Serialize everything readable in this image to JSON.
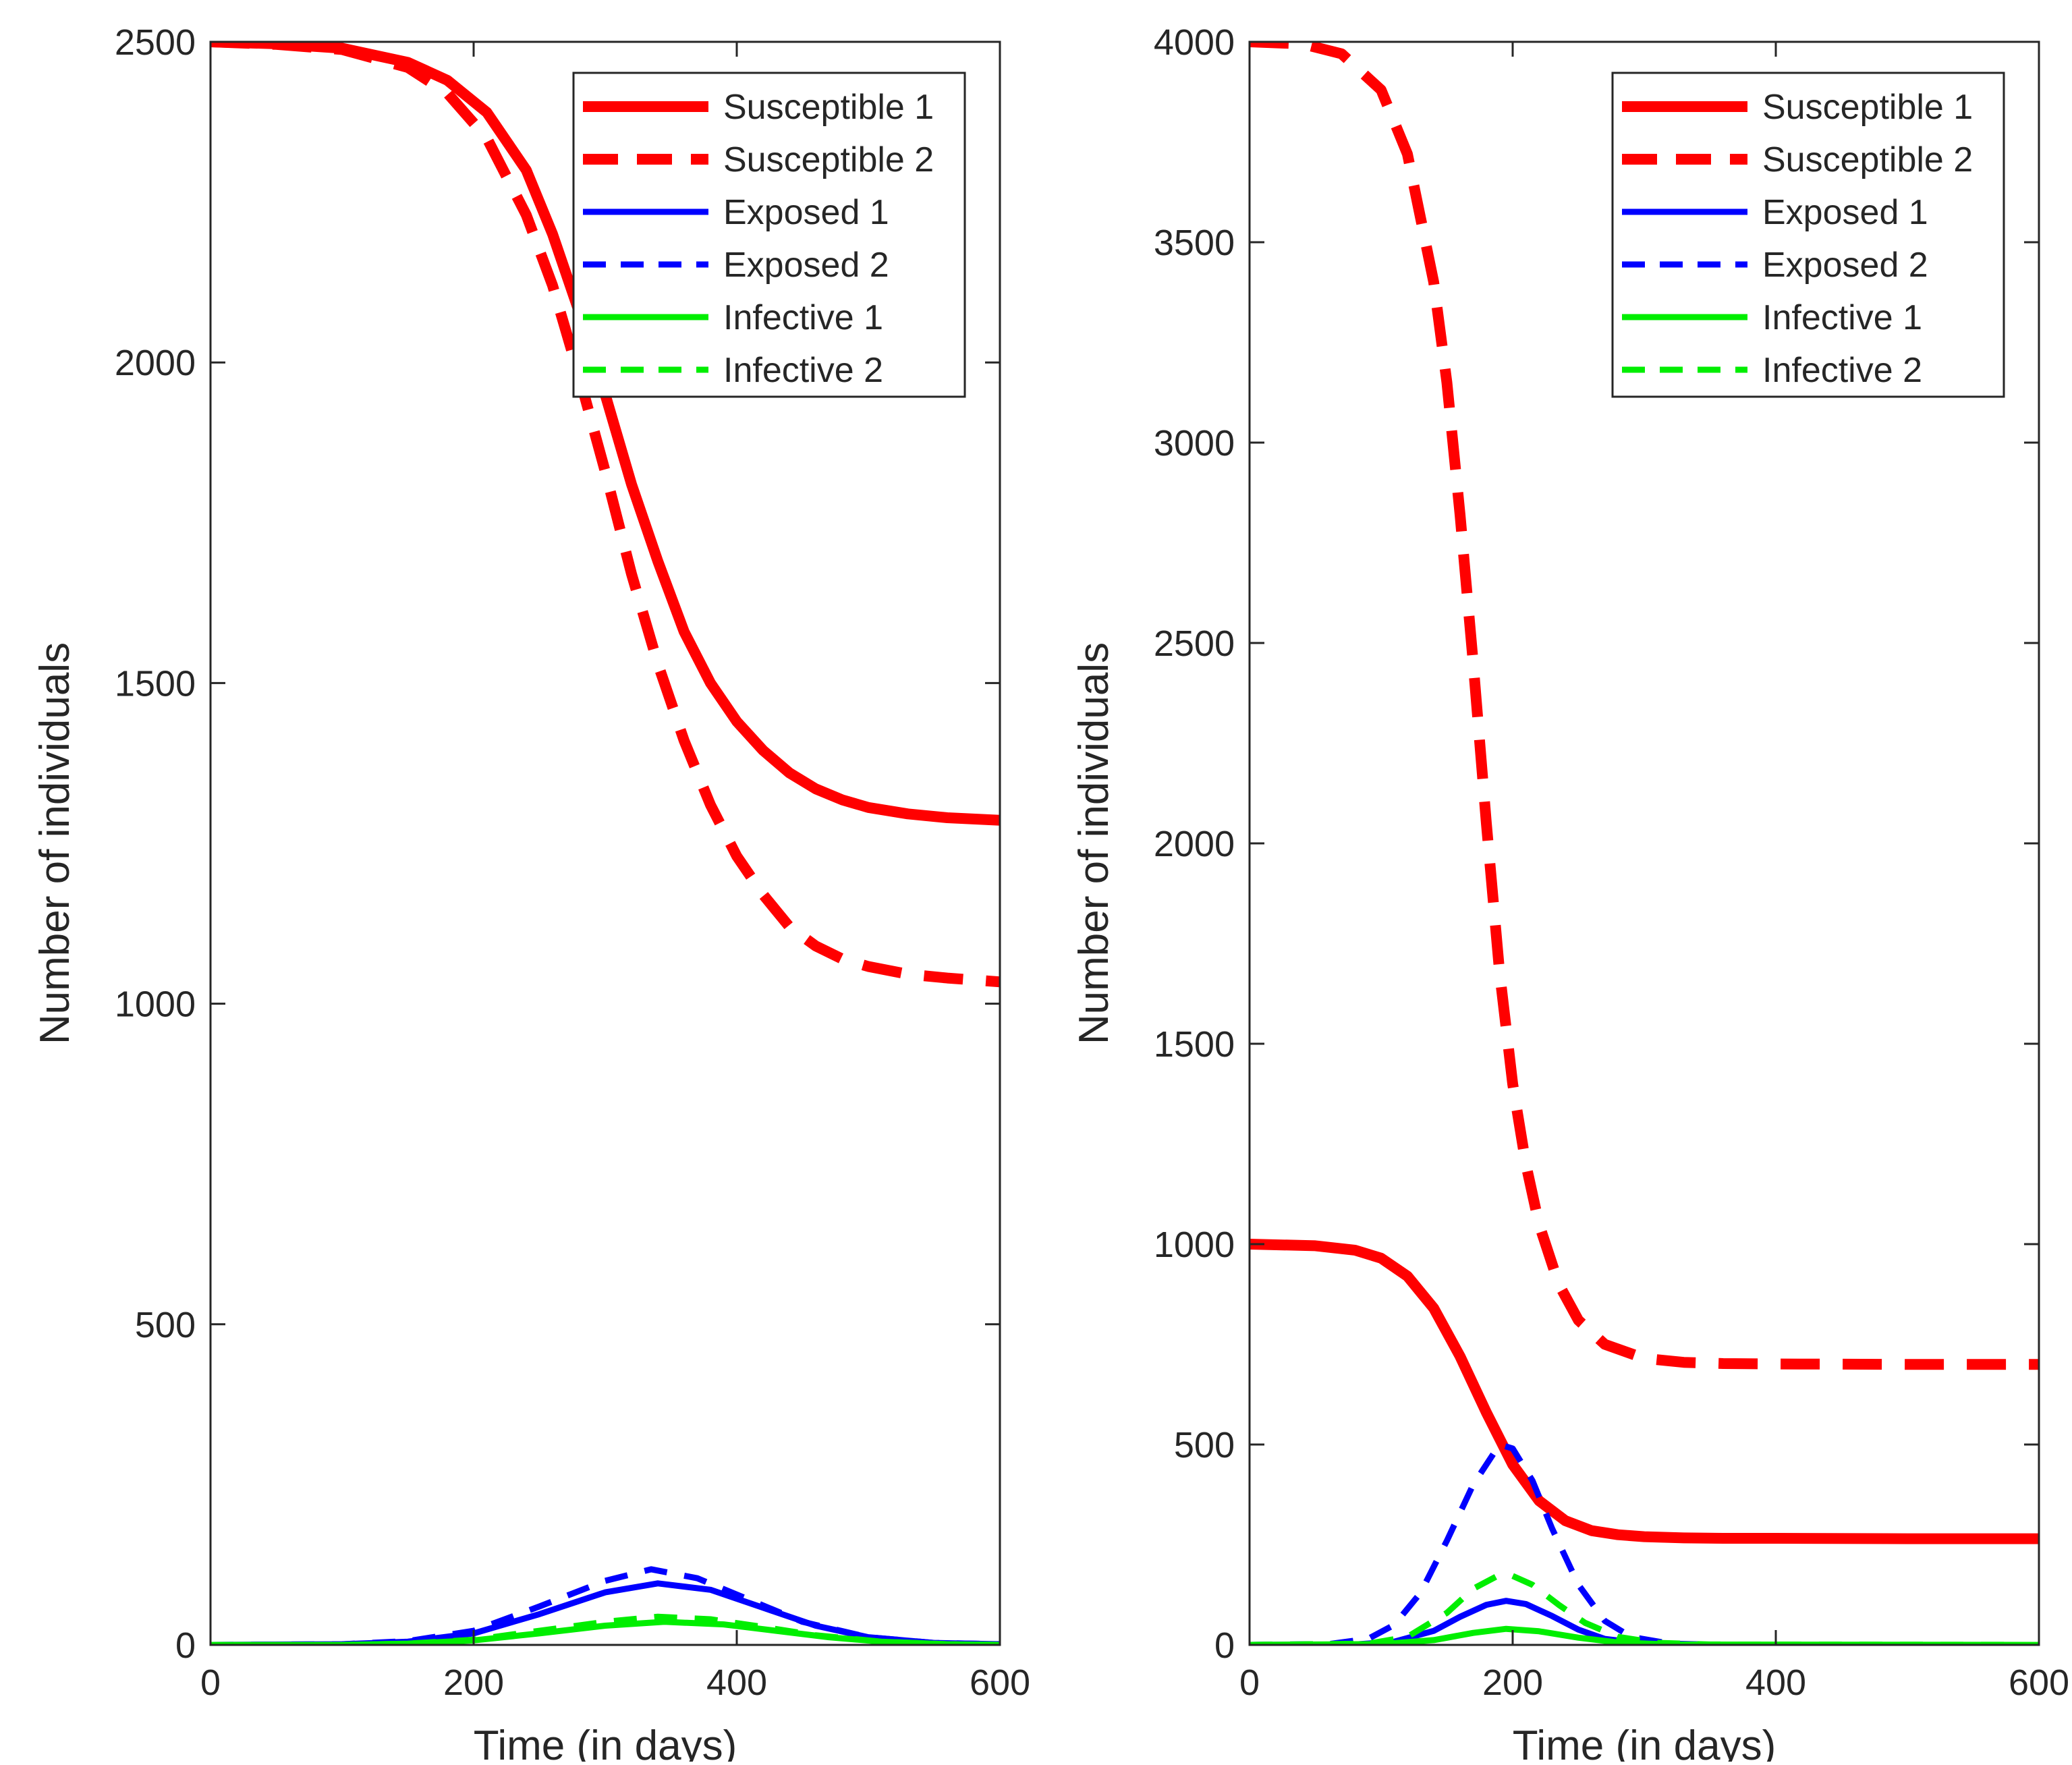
{
  "chart_data": [
    {
      "type": "line",
      "panel": "left",
      "xlabel": "Time (in days)",
      "ylabel": "Number of individuals",
      "xlim": [
        0,
        600
      ],
      "ylim": [
        0,
        2500
      ],
      "xticks": [
        0,
        200,
        400,
        600
      ],
      "yticks": [
        0,
        500,
        1000,
        1500,
        2000,
        2500
      ],
      "grid": false,
      "legend_position": "top-right",
      "series": [
        {
          "name": "Susceptible 1",
          "color": "#ff0000",
          "style": "solid",
          "width": "thick",
          "x": [
            0,
            50,
            100,
            150,
            180,
            210,
            240,
            260,
            280,
            300,
            320,
            340,
            360,
            380,
            400,
            420,
            440,
            460,
            480,
            500,
            530,
            560,
            600
          ],
          "y": [
            2500,
            2497,
            2490,
            2468,
            2440,
            2390,
            2300,
            2200,
            2080,
            1950,
            1810,
            1690,
            1580,
            1500,
            1440,
            1395,
            1360,
            1335,
            1318,
            1306,
            1296,
            1290,
            1286
          ]
        },
        {
          "name": "Susceptible 2",
          "color": "#ff0000",
          "style": "dashed",
          "width": "thick",
          "x": [
            0,
            50,
            100,
            150,
            180,
            210,
            240,
            260,
            280,
            300,
            320,
            340,
            360,
            380,
            400,
            420,
            440,
            460,
            480,
            500,
            530,
            560,
            600
          ],
          "y": [
            2500,
            2496,
            2488,
            2460,
            2420,
            2350,
            2230,
            2120,
            1980,
            1830,
            1670,
            1530,
            1410,
            1310,
            1230,
            1170,
            1120,
            1090,
            1070,
            1058,
            1046,
            1040,
            1034
          ]
        },
        {
          "name": "Exposed 1",
          "color": "#0000ff",
          "style": "solid",
          "width": "medium",
          "x": [
            0,
            100,
            150,
            200,
            250,
            300,
            340,
            380,
            420,
            460,
            500,
            550,
            600
          ],
          "y": [
            0,
            1,
            5,
            18,
            48,
            82,
            96,
            86,
            58,
            30,
            12,
            3,
            1
          ]
        },
        {
          "name": "Exposed 2",
          "color": "#0000ff",
          "style": "dashed",
          "width": "medium",
          "x": [
            0,
            100,
            150,
            200,
            250,
            300,
            335,
            370,
            410,
            450,
            500,
            550,
            600
          ],
          "y": [
            0,
            1,
            6,
            22,
            60,
            100,
            118,
            104,
            70,
            36,
            12,
            3,
            1
          ]
        },
        {
          "name": "Infective 1",
          "color": "#00ee00",
          "style": "solid",
          "width": "medium",
          "x": [
            0,
            100,
            150,
            200,
            250,
            300,
            345,
            390,
            430,
            470,
            510,
            560,
            600
          ],
          "y": [
            0,
            0,
            2,
            7,
            18,
            30,
            36,
            32,
            22,
            12,
            5,
            1,
            0
          ]
        },
        {
          "name": "Infective 2",
          "color": "#00ee00",
          "style": "dashed",
          "width": "medium",
          "x": [
            0,
            100,
            150,
            200,
            250,
            300,
            340,
            380,
            420,
            460,
            510,
            560,
            600
          ],
          "y": [
            0,
            0,
            2,
            8,
            22,
            36,
            44,
            40,
            28,
            15,
            5,
            1,
            0
          ]
        }
      ],
      "legend": [
        "Susceptible 1",
        "Susceptible 2",
        "Exposed 1",
        "Exposed 2",
        "Infective 1",
        "Infective 2"
      ]
    },
    {
      "type": "line",
      "panel": "right",
      "xlabel": "Time (in days)",
      "ylabel": "Number of individuals",
      "xlim": [
        0,
        600
      ],
      "ylim": [
        0,
        4000
      ],
      "xticks": [
        0,
        200,
        400,
        600
      ],
      "yticks": [
        0,
        500,
        1000,
        1500,
        2000,
        2500,
        3000,
        3500,
        4000
      ],
      "grid": false,
      "legend_position": "top-right",
      "series": [
        {
          "name": "Susceptible 1",
          "color": "#ff0000",
          "style": "solid",
          "width": "thick",
          "x": [
            0,
            50,
            80,
            100,
            120,
            140,
            160,
            180,
            200,
            220,
            240,
            260,
            280,
            300,
            330,
            360,
            400,
            500,
            600
          ],
          "y": [
            1000,
            996,
            985,
            965,
            920,
            840,
            720,
            580,
            450,
            360,
            310,
            285,
            275,
            270,
            267,
            266,
            266,
            265,
            265
          ]
        },
        {
          "name": "Susceptible 2",
          "color": "#ff0000",
          "style": "dashed",
          "width": "thick",
          "x": [
            0,
            40,
            70,
            100,
            120,
            140,
            150,
            160,
            170,
            180,
            190,
            200,
            210,
            220,
            235,
            250,
            270,
            300,
            330,
            360,
            400,
            500,
            600
          ],
          "y": [
            4000,
            3995,
            3970,
            3880,
            3720,
            3400,
            3150,
            2820,
            2450,
            2050,
            1680,
            1400,
            1200,
            1050,
            900,
            810,
            750,
            715,
            705,
            702,
            701,
            700,
            700
          ]
        },
        {
          "name": "Exposed 1",
          "color": "#0000ff",
          "style": "solid",
          "width": "medium",
          "x": [
            0,
            80,
            110,
            140,
            160,
            180,
            195,
            210,
            230,
            250,
            270,
            300,
            350,
            400,
            600
          ],
          "y": [
            0,
            1,
            8,
            35,
            70,
            100,
            110,
            102,
            72,
            38,
            15,
            3,
            0,
            0,
            0
          ]
        },
        {
          "name": "Exposed 2",
          "color": "#0000ff",
          "style": "dashed",
          "width": "medium",
          "x": [
            0,
            60,
            90,
            110,
            130,
            150,
            170,
            190,
            200,
            215,
            230,
            250,
            270,
            290,
            320,
            360,
            400,
            600
          ],
          "y": [
            0,
            2,
            15,
            50,
            130,
            260,
            400,
            500,
            490,
            410,
            290,
            150,
            60,
            20,
            3,
            0,
            0,
            0
          ]
        },
        {
          "name": "Infective 1",
          "color": "#00ee00",
          "style": "solid",
          "width": "medium",
          "x": [
            0,
            100,
            140,
            170,
            195,
            220,
            250,
            280,
            320,
            600
          ],
          "y": [
            0,
            2,
            12,
            30,
            40,
            34,
            18,
            6,
            1,
            0
          ]
        },
        {
          "name": "Infective 2",
          "color": "#00ee00",
          "style": "dashed",
          "width": "medium",
          "x": [
            0,
            90,
            120,
            150,
            170,
            190,
            200,
            215,
            235,
            255,
            280,
            310,
            350,
            600
          ],
          "y": [
            0,
            3,
            20,
            80,
            140,
            175,
            172,
            150,
            100,
            55,
            20,
            5,
            1,
            0
          ]
        }
      ],
      "legend": [
        "Susceptible 1",
        "Susceptible 2",
        "Exposed 1",
        "Exposed 2",
        "Infective 1",
        "Infective 2"
      ]
    }
  ]
}
